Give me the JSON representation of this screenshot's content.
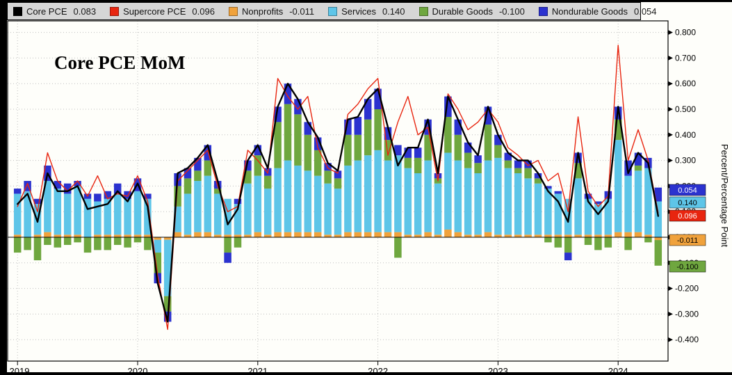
{
  "title": "Core PCE MoM",
  "legend": {
    "items": [
      {
        "name": "Core PCE",
        "value": "0.083",
        "color": "#000000"
      },
      {
        "name": "Supercore PCE",
        "value": "0.096",
        "color": "#e8250f"
      },
      {
        "name": "Nonprofits",
        "value": "-0.011",
        "color": "#f0a23c"
      },
      {
        "name": "Services",
        "value": "0.140",
        "color": "#5ec5e8"
      },
      {
        "name": "Durable Goods",
        "value": "-0.100",
        "color": "#6fa73f"
      },
      {
        "name": "Nondurable Goods",
        "value": "0.054",
        "color": "#2b32cf"
      }
    ]
  },
  "axis": {
    "y_label": "Percent/Percentage Point",
    "y_ticks": [
      "0.800",
      "0.700",
      "0.600",
      "0.500",
      "0.400",
      "0.300",
      "0.200",
      "0.100",
      "0.000",
      "-0.100",
      "-0.200",
      "-0.300",
      "-0.400"
    ],
    "x_ticks": [
      "2019",
      "2020",
      "2021",
      "2022",
      "2023",
      "2024"
    ]
  },
  "badges": [
    {
      "label": "0.054",
      "color": "#2b32cf",
      "text_color": "#ffffff"
    },
    {
      "label": "0.140",
      "color": "#5ec5e8",
      "text_color": "#000000"
    },
    {
      "label": "0.096",
      "color": "#e8250f",
      "text_color": "#ffffff"
    },
    {
      "label": "-0.011",
      "color": "#f0a23c",
      "text_color": "#000000"
    },
    {
      "label": "-0.100",
      "color": "#6fa73f",
      "text_color": "#000000"
    }
  ],
  "chart_data": {
    "type": "bar",
    "combo": "stacked-bar+line",
    "title": "Core PCE MoM",
    "ylabel": "Percent/Percentage Point",
    "ylim": [
      -0.45,
      0.85
    ],
    "grid": "dotted",
    "legend_position": "top",
    "x": [
      "2019-01",
      "2019-02",
      "2019-03",
      "2019-04",
      "2019-05",
      "2019-06",
      "2019-07",
      "2019-08",
      "2019-09",
      "2019-10",
      "2019-11",
      "2019-12",
      "2020-01",
      "2020-02",
      "2020-03",
      "2020-04",
      "2020-05",
      "2020-06",
      "2020-07",
      "2020-08",
      "2020-09",
      "2020-10",
      "2020-11",
      "2020-12",
      "2021-01",
      "2021-02",
      "2021-03",
      "2021-04",
      "2021-05",
      "2021-06",
      "2021-07",
      "2021-08",
      "2021-09",
      "2021-10",
      "2021-11",
      "2021-12",
      "2022-01",
      "2022-02",
      "2022-03",
      "2022-04",
      "2022-05",
      "2022-06",
      "2022-07",
      "2022-08",
      "2022-09",
      "2022-10",
      "2022-11",
      "2022-12",
      "2023-01",
      "2023-02",
      "2023-03",
      "2023-04",
      "2023-05",
      "2023-06",
      "2023-07",
      "2023-08",
      "2023-09",
      "2023-10",
      "2023-11",
      "2023-12",
      "2024-01",
      "2024-02",
      "2024-03",
      "2024-04",
      "2024-05"
    ],
    "series": [
      {
        "name": "Nonprofits",
        "type": "bar",
        "color": "#f0a23c",
        "values": [
          0.01,
          0.0,
          0.01,
          0.02,
          0.01,
          0.01,
          0.01,
          0.0,
          0.01,
          0.01,
          0.01,
          0.01,
          0.01,
          0.01,
          -0.01,
          -0.01,
          0.02,
          0.01,
          0.02,
          0.02,
          0.01,
          0.01,
          0.01,
          0.01,
          0.02,
          0.01,
          0.02,
          0.02,
          0.02,
          0.02,
          0.02,
          0.01,
          0.01,
          0.02,
          0.02,
          0.02,
          0.02,
          0.02,
          0.02,
          0.01,
          0.01,
          0.02,
          0.01,
          0.03,
          0.02,
          0.01,
          0.01,
          0.02,
          0.01,
          0.01,
          0.01,
          0.01,
          0.01,
          0.01,
          0.01,
          0.01,
          0.01,
          0.01,
          0.01,
          0.01,
          0.02,
          0.02,
          0.02,
          0.01,
          -0.011
        ]
      },
      {
        "name": "Services",
        "type": "bar",
        "color": "#5ec5e8",
        "values": [
          0.16,
          0.18,
          0.12,
          0.2,
          0.18,
          0.16,
          0.19,
          0.15,
          0.13,
          0.14,
          0.16,
          0.14,
          0.17,
          0.14,
          -0.05,
          -0.22,
          0.1,
          0.16,
          0.2,
          0.22,
          0.16,
          0.14,
          0.12,
          0.2,
          0.22,
          0.18,
          0.25,
          0.28,
          0.26,
          0.24,
          0.22,
          0.2,
          0.18,
          0.26,
          0.28,
          0.3,
          0.32,
          0.28,
          0.3,
          0.26,
          0.24,
          0.28,
          0.2,
          0.3,
          0.28,
          0.26,
          0.24,
          0.28,
          0.3,
          0.26,
          0.24,
          0.22,
          0.2,
          0.18,
          0.16,
          0.14,
          0.22,
          0.14,
          0.12,
          0.14,
          0.36,
          0.22,
          0.24,
          0.26,
          0.14
        ]
      },
      {
        "name": "Durable Goods",
        "type": "bar",
        "color": "#6fa73f",
        "values": [
          -0.06,
          -0.05,
          -0.09,
          -0.03,
          -0.04,
          -0.03,
          -0.02,
          -0.06,
          -0.05,
          -0.05,
          -0.03,
          -0.04,
          -0.02,
          -0.05,
          -0.08,
          -0.06,
          0.08,
          0.06,
          0.04,
          0.06,
          0.02,
          -0.06,
          -0.04,
          0.05,
          0.08,
          0.05,
          0.18,
          0.22,
          0.2,
          0.14,
          0.1,
          0.05,
          0.04,
          0.12,
          0.1,
          0.14,
          0.16,
          0.08,
          -0.08,
          0.04,
          0.06,
          0.1,
          0.02,
          0.14,
          0.1,
          0.06,
          0.04,
          0.14,
          0.05,
          0.03,
          0.02,
          0.04,
          0.02,
          -0.02,
          -0.04,
          -0.06,
          0.06,
          -0.03,
          -0.05,
          -0.04,
          0.08,
          -0.05,
          0.02,
          -0.02,
          -0.1
        ]
      },
      {
        "name": "Nondurable Goods",
        "type": "bar",
        "color": "#2b32cf",
        "values": [
          0.02,
          0.04,
          0.02,
          0.06,
          0.03,
          0.04,
          0.02,
          0.02,
          0.03,
          0.03,
          0.04,
          0.03,
          0.05,
          0.02,
          -0.04,
          -0.04,
          0.05,
          0.04,
          0.05,
          0.06,
          0.03,
          -0.04,
          0.02,
          0.04,
          0.04,
          0.03,
          0.06,
          0.08,
          0.06,
          0.05,
          0.05,
          0.03,
          0.03,
          0.06,
          0.07,
          0.08,
          0.08,
          0.05,
          0.04,
          0.04,
          0.04,
          0.06,
          0.02,
          0.08,
          0.06,
          0.04,
          0.03,
          0.07,
          0.04,
          0.03,
          0.03,
          0.03,
          0.02,
          0.01,
          0.01,
          -0.03,
          0.04,
          0.02,
          0.01,
          0.03,
          0.05,
          0.06,
          0.05,
          0.04,
          0.054
        ]
      },
      {
        "name": "Supercore PCE",
        "type": "line",
        "color": "#e8250f",
        "values": [
          0.12,
          0.21,
          0.1,
          0.33,
          0.22,
          0.18,
          0.22,
          0.16,
          0.24,
          0.15,
          0.17,
          0.16,
          0.24,
          0.14,
          -0.15,
          -0.36,
          0.22,
          0.26,
          0.3,
          0.34,
          0.2,
          0.1,
          0.12,
          0.34,
          0.3,
          0.25,
          0.62,
          0.55,
          0.5,
          0.55,
          0.35,
          0.27,
          0.25,
          0.48,
          0.52,
          0.58,
          0.62,
          0.32,
          0.45,
          0.55,
          0.4,
          0.43,
          0.22,
          0.56,
          0.5,
          0.42,
          0.45,
          0.5,
          0.45,
          0.35,
          0.32,
          0.28,
          0.3,
          0.22,
          0.25,
          0.1,
          0.47,
          0.18,
          0.12,
          0.16,
          0.75,
          0.3,
          0.42,
          0.3,
          0.096
        ]
      },
      {
        "name": "Core PCE",
        "type": "line",
        "color": "#000000",
        "values": [
          0.13,
          0.17,
          0.06,
          0.25,
          0.18,
          0.18,
          0.2,
          0.11,
          0.12,
          0.13,
          0.18,
          0.14,
          0.21,
          0.12,
          -0.18,
          -0.33,
          0.25,
          0.27,
          0.31,
          0.36,
          0.22,
          0.05,
          0.11,
          0.3,
          0.36,
          0.27,
          0.51,
          0.6,
          0.54,
          0.45,
          0.39,
          0.29,
          0.26,
          0.46,
          0.47,
          0.54,
          0.58,
          0.43,
          0.28,
          0.35,
          0.35,
          0.46,
          0.25,
          0.55,
          0.46,
          0.37,
          0.32,
          0.51,
          0.4,
          0.33,
          0.3,
          0.3,
          0.25,
          0.18,
          0.14,
          0.06,
          0.33,
          0.14,
          0.09,
          0.14,
          0.51,
          0.25,
          0.33,
          0.29,
          0.083
        ]
      }
    ]
  }
}
